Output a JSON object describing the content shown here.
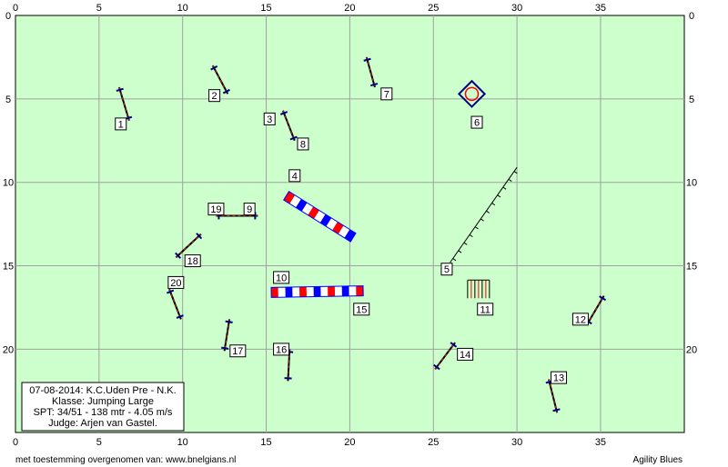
{
  "colors": {
    "field": "#ccffcc",
    "grid": "#a0a0a0",
    "pole": "#000000",
    "pole_dash": "#cc2222",
    "wing": "#000080",
    "tunnel_red": "#ff0000",
    "tunnel_blue": "#0000ff",
    "tunnel_white": "#ffffff",
    "table": "#000080"
  },
  "axes": {
    "x_ticks": [
      "0",
      "5",
      "10",
      "15",
      "20",
      "25",
      "30",
      "35"
    ],
    "y_ticks": [
      "0",
      "5",
      "10",
      "15",
      "20"
    ]
  },
  "info": {
    "line1": "07-08-2014: K.C.Uden Pre - N.K.",
    "line2": "Klasse: Jumping Large",
    "line3": "SPT: 34/51 - 138 mtr - 4.05 m/s",
    "line4": "Judge: Arjen van Gastel."
  },
  "footer": {
    "left": "met toestemming overgenomen van: www.bnelgians.nl",
    "right": "Agility Blues"
  },
  "obstacles": [
    {
      "label": "1",
      "type": "jump",
      "x1": 6.2,
      "y1": 4.3,
      "x2": 6.8,
      "y2": 6.3,
      "lx": 6.3,
      "ly": 6.5
    },
    {
      "label": "2",
      "type": "jump",
      "x1": 11.8,
      "y1": 3.0,
      "x2": 12.7,
      "y2": 4.7,
      "lx": 11.9,
      "ly": 4.8
    },
    {
      "label": "3",
      "type": "jump",
      "x1": 16.0,
      "y1": 5.7,
      "x2": 16.7,
      "y2": 7.5,
      "lx": 15.2,
      "ly": 6.2
    },
    {
      "label": "4",
      "type": "tunnel",
      "x1": 16.2,
      "y1": 10.8,
      "x2": 20.2,
      "y2": 13.3,
      "lx": 16.7,
      "ly": 9.6
    },
    {
      "label": "5",
      "type": "weave",
      "x1": 26.0,
      "y1": 14.8,
      "x2": 30.0,
      "y2": 9.1,
      "lx": 25.8,
      "ly": 15.2
    },
    {
      "label": "6",
      "type": "table",
      "x1": 27.3,
      "y1": 4.7,
      "x2": 27.3,
      "y2": 4.7,
      "lx": 27.6,
      "ly": 6.4
    },
    {
      "label": "7",
      "type": "jump",
      "x1": 21.0,
      "y1": 2.5,
      "x2": 21.5,
      "y2": 4.3,
      "lx": 22.2,
      "ly": 4.7
    },
    {
      "label": "8",
      "type": "jump",
      "x1": 16.7,
      "y1": 7.5,
      "x2": 16.7,
      "y2": 7.5,
      "lx": 17.2,
      "ly": 7.7
    },
    {
      "label": "9",
      "type": "jump",
      "x1": 12.0,
      "y1": 12.0,
      "x2": 14.5,
      "y2": 12.0,
      "lx": 14.0,
      "ly": 11.6
    },
    {
      "label": "10",
      "type": "tunnel",
      "x1": 15.3,
      "y1": 16.6,
      "x2": 20.8,
      "y2": 16.5,
      "lx": 15.9,
      "ly": 15.7
    },
    {
      "label": "11",
      "type": "tyre",
      "x1": 27.7,
      "y1": 16.4,
      "x2": 27.7,
      "y2": 16.4,
      "lx": 28.1,
      "ly": 17.6
    },
    {
      "label": "12",
      "type": "jump",
      "x1": 34.2,
      "y1": 18.5,
      "x2": 35.2,
      "y2": 16.8,
      "lx": 33.8,
      "ly": 18.2
    },
    {
      "label": "13",
      "type": "jump",
      "x1": 31.9,
      "y1": 21.8,
      "x2": 32.4,
      "y2": 23.8,
      "lx": 32.5,
      "ly": 21.7
    },
    {
      "label": "14",
      "type": "jump",
      "x1": 25.1,
      "y1": 21.2,
      "x2": 26.3,
      "y2": 19.6,
      "lx": 26.9,
      "ly": 20.3
    },
    {
      "label": "15",
      "type": "label",
      "x1": 20.8,
      "y1": 16.5,
      "x2": 20.8,
      "y2": 16.5,
      "lx": 20.7,
      "ly": 17.6
    },
    {
      "label": "16",
      "type": "jump",
      "x1": 16.4,
      "y1": 20.0,
      "x2": 16.3,
      "y2": 21.9,
      "lx": 15.9,
      "ly": 20.0
    },
    {
      "label": "17",
      "type": "jump",
      "x1": 12.8,
      "y1": 18.2,
      "x2": 12.5,
      "y2": 20.1,
      "lx": 13.3,
      "ly": 20.1
    },
    {
      "label": "18",
      "type": "jump",
      "x1": 9.6,
      "y1": 14.5,
      "x2": 11.1,
      "y2": 13.1,
      "lx": 10.6,
      "ly": 14.7
    },
    {
      "label": "19",
      "type": "label",
      "x1": 12.0,
      "y1": 12.0,
      "x2": 12.0,
      "y2": 12.0,
      "lx": 12.0,
      "ly": 11.6
    },
    {
      "label": "20",
      "type": "jump",
      "x1": 9.2,
      "y1": 16.4,
      "x2": 9.9,
      "y2": 18.2,
      "lx": 9.6,
      "ly": 16.0
    }
  ]
}
